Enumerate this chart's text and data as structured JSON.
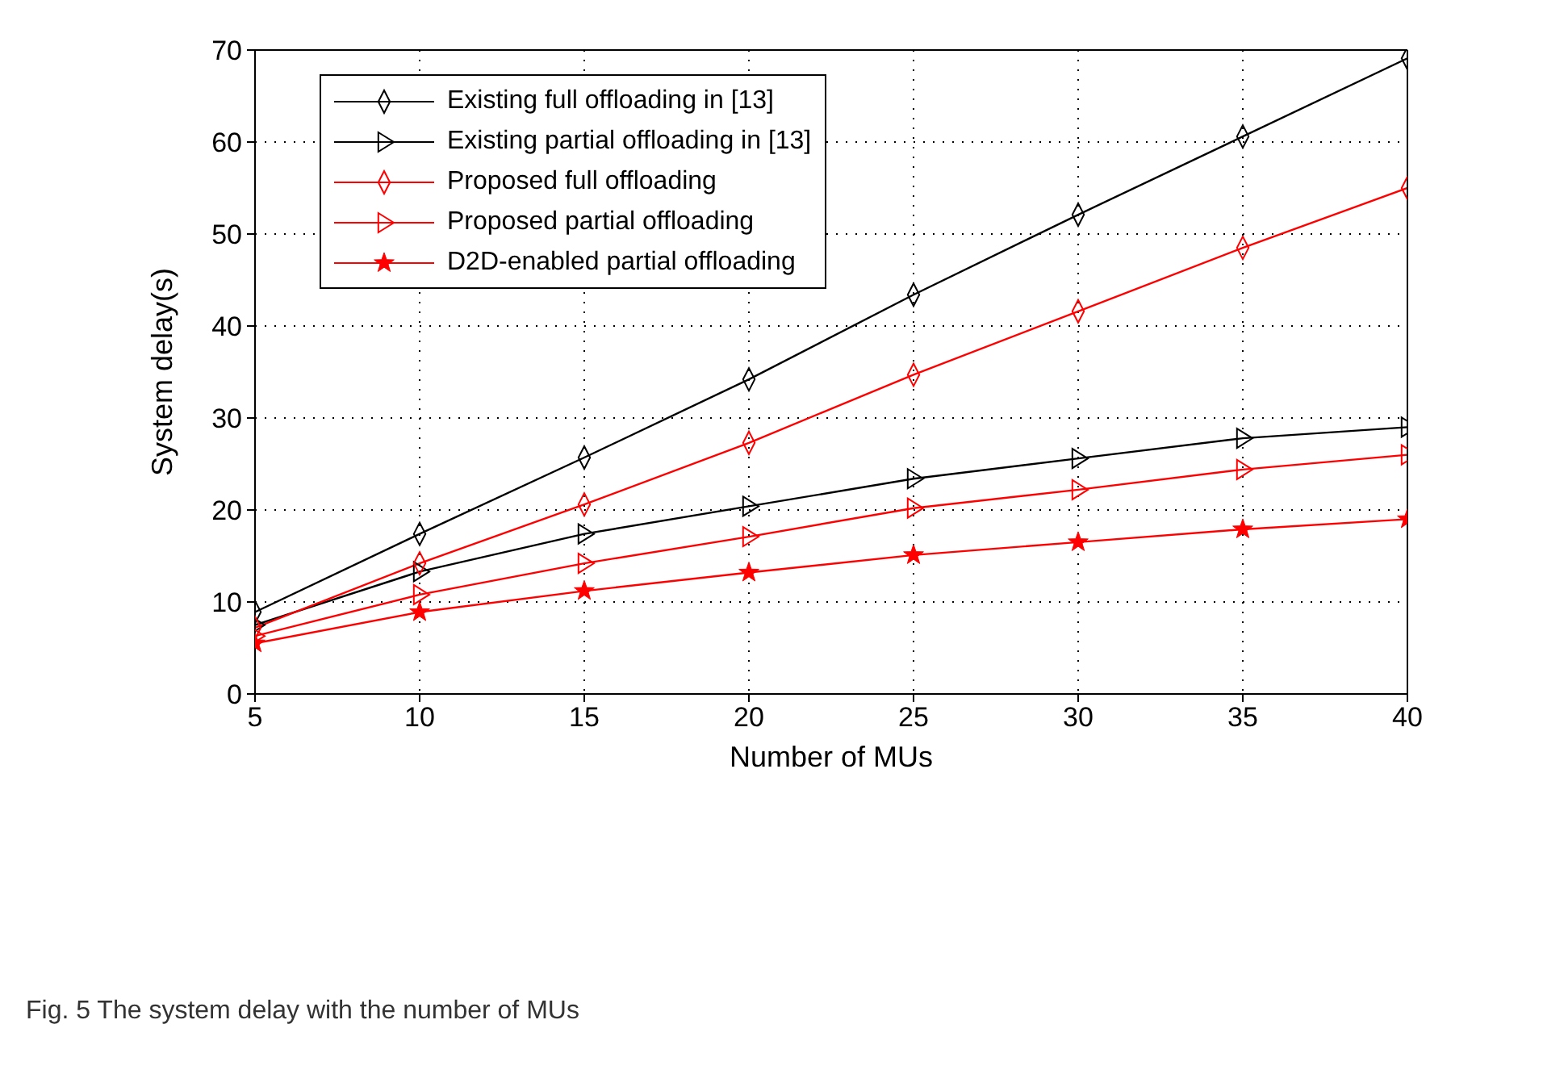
{
  "chart_data": {
    "type": "line",
    "xlabel": "Number of MUs",
    "ylabel": "System delay(s)",
    "x": [
      5,
      10,
      15,
      20,
      25,
      30,
      35,
      40
    ],
    "series": [
      {
        "name": "Existing full offloading in [13]",
        "color": "#000000",
        "marker": "diamond",
        "values": [
          8.9,
          17.4,
          25.7,
          34.2,
          43.4,
          52.1,
          60.6,
          69.1
        ]
      },
      {
        "name": "Existing partial offloading in [13]",
        "color": "#000000",
        "marker": "triangle",
        "values": [
          7.5,
          13.3,
          17.4,
          20.4,
          23.4,
          25.6,
          27.8,
          29.0
        ]
      },
      {
        "name": "Proposed full offloading",
        "color": "#ff0000",
        "marker": "diamond",
        "values": [
          7.2,
          14.2,
          20.6,
          27.3,
          34.7,
          41.6,
          48.5,
          55.0
        ]
      },
      {
        "name": "Proposed partial offloading",
        "color": "#ff0000",
        "marker": "triangle",
        "values": [
          6.3,
          10.8,
          14.2,
          17.1,
          20.2,
          22.2,
          24.4,
          26.0
        ]
      },
      {
        "name": "D2D-enabled partial offloading",
        "color": "#ff0000",
        "marker": "star",
        "values": [
          5.5,
          8.9,
          11.2,
          13.2,
          15.1,
          16.5,
          17.9,
          19.0
        ]
      }
    ],
    "xlim": [
      5,
      40
    ],
    "xticks": [
      5,
      10,
      15,
      20,
      25,
      30,
      35,
      40
    ],
    "ylim": [
      0,
      70
    ],
    "yticks": [
      0,
      10,
      20,
      30,
      40,
      50,
      60,
      70
    ],
    "grid": true,
    "legend": "top left",
    "line_style": "solid",
    "annotations": [
      "Fig. 5 The system delay with the number of MUs"
    ]
  }
}
